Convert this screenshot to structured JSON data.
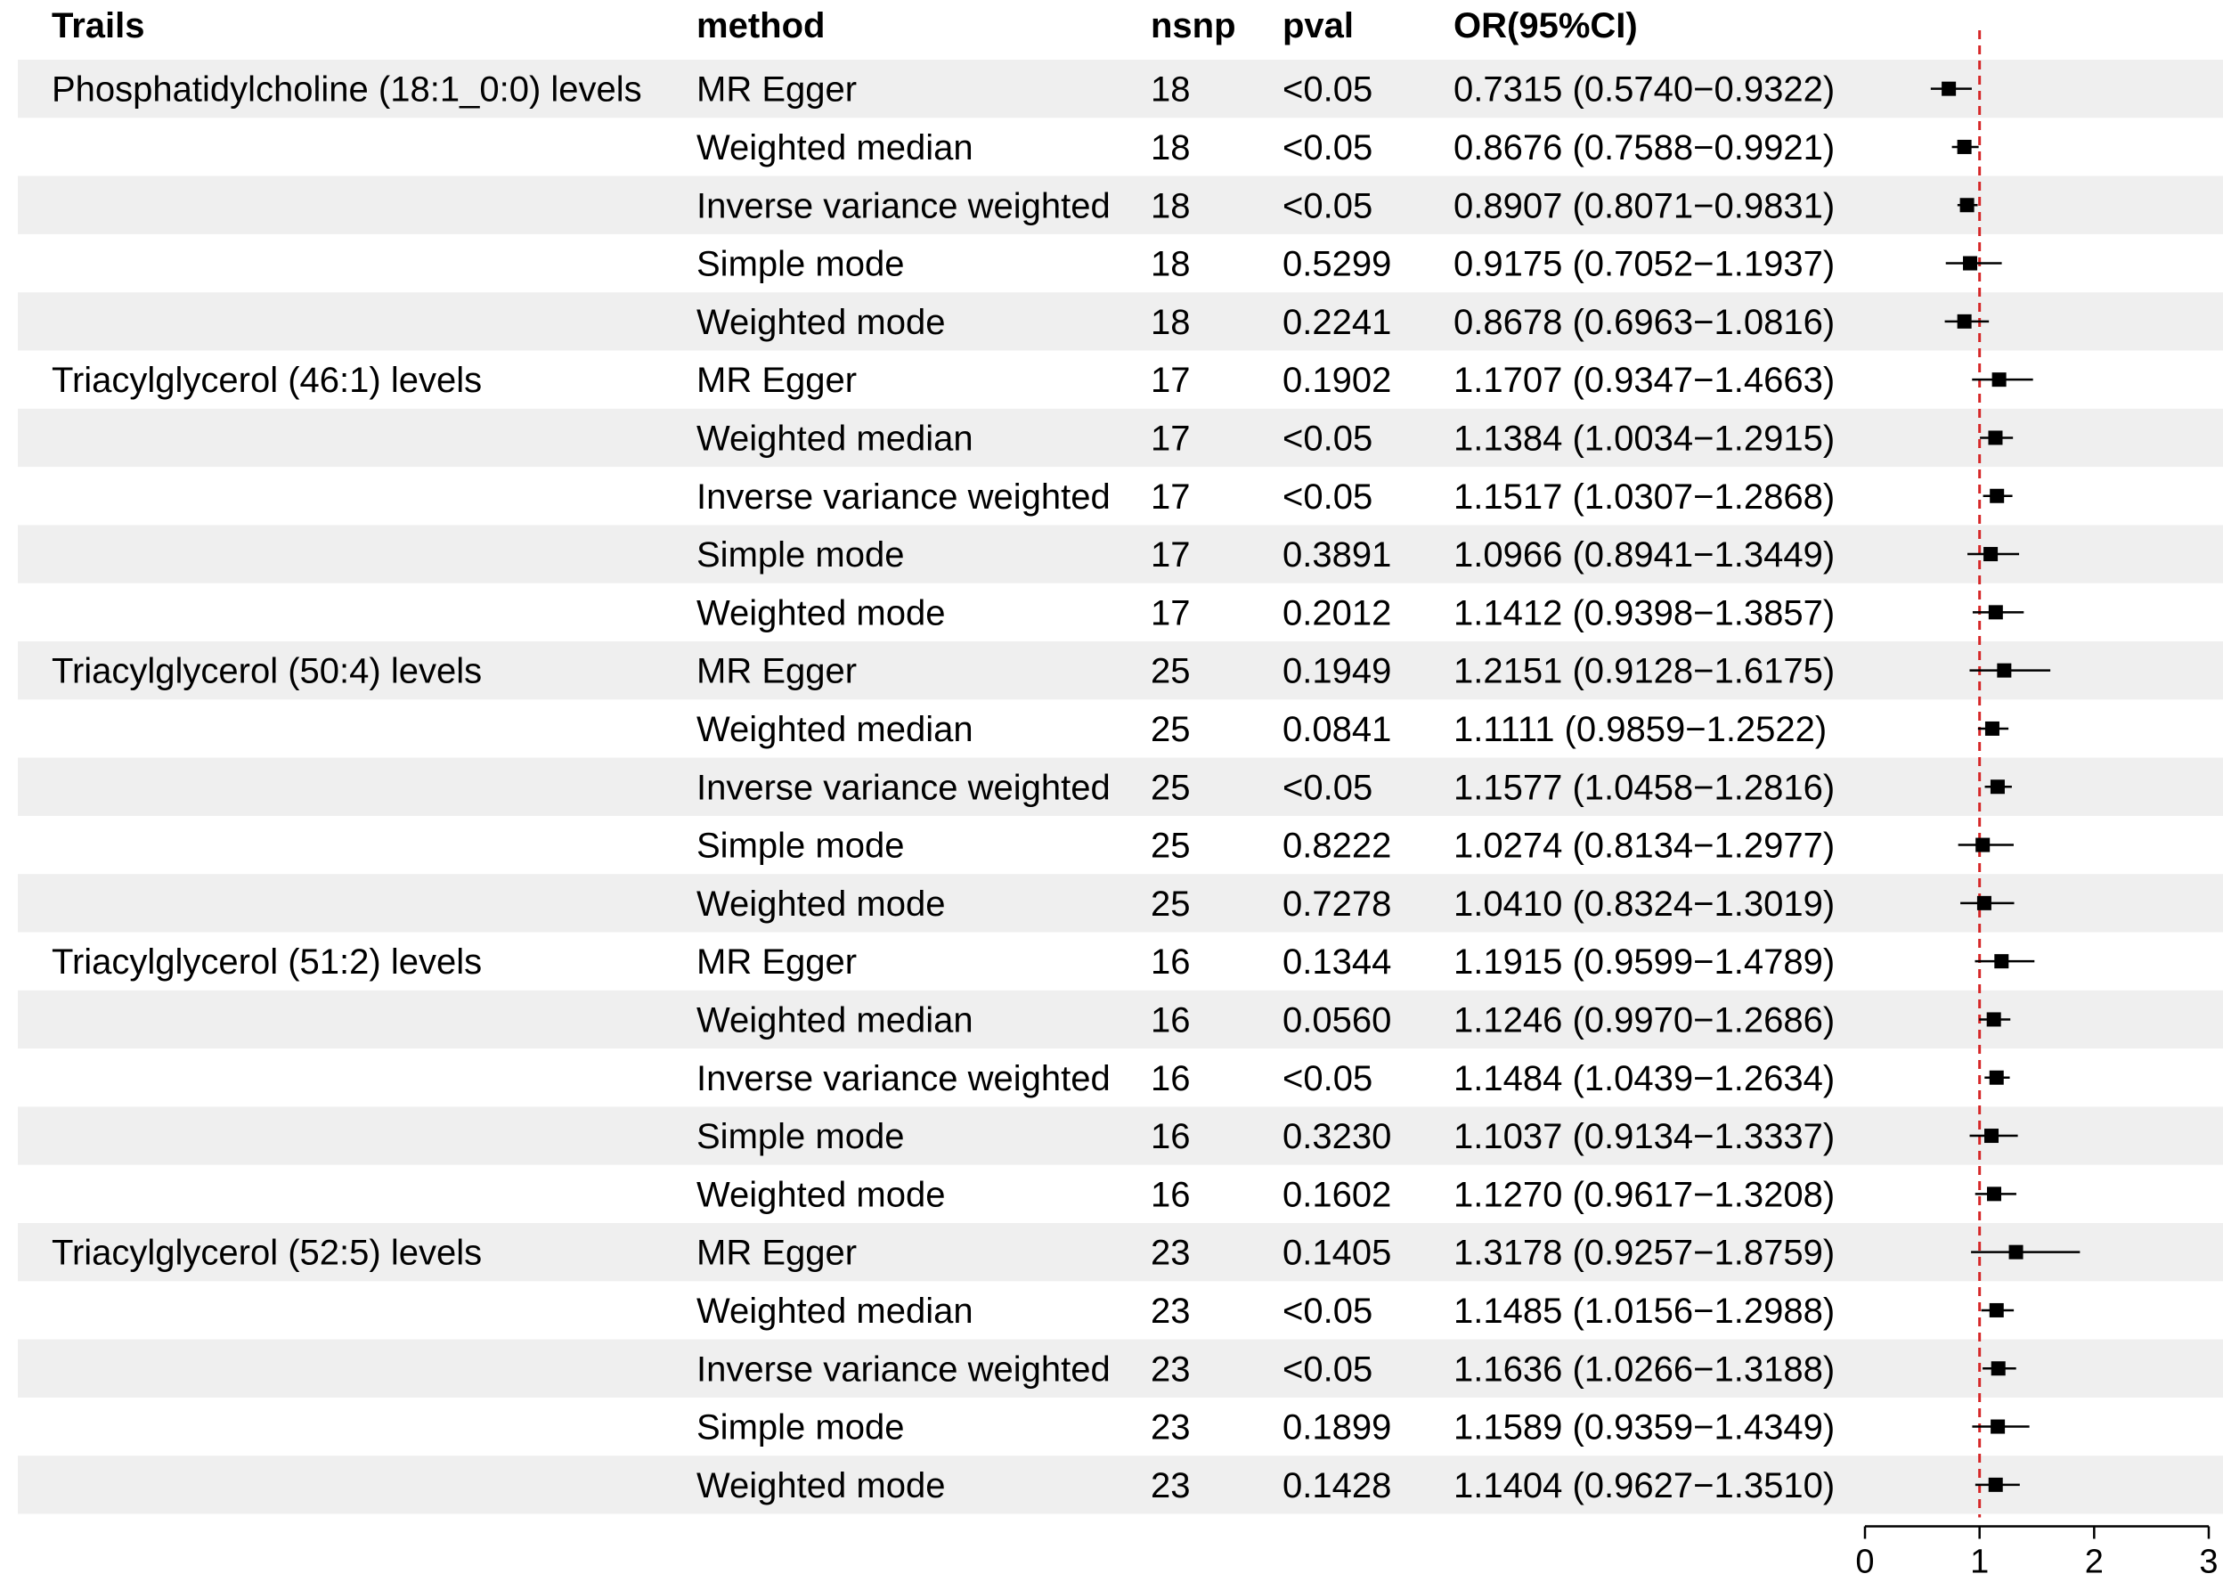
{
  "chart_data": {
    "type": "forest",
    "columns": [
      "Trails",
      "method",
      "nsnp",
      "pval",
      "OR(95%CI)"
    ],
    "reference_line": 1,
    "xlim": [
      0,
      3
    ],
    "x_ticks": [
      0,
      1,
      2,
      3
    ],
    "colors": {
      "band": "#efefef",
      "reference": "#d62728",
      "mark": "#000000"
    },
    "rows": [
      {
        "trait": "Phosphatidylcholine (18:1_0:0) levels",
        "method": "MR Egger",
        "nsnp": "18",
        "pval": "<0.05",
        "or_text": "0.7315 (0.5740−0.9322)",
        "or": 0.7315,
        "lo": 0.574,
        "hi": 0.9322
      },
      {
        "trait": "",
        "method": "Weighted median",
        "nsnp": "18",
        "pval": "<0.05",
        "or_text": "0.8676 (0.7588−0.9921)",
        "or": 0.8676,
        "lo": 0.7588,
        "hi": 0.9921
      },
      {
        "trait": "",
        "method": "Inverse variance weighted",
        "nsnp": "18",
        "pval": "<0.05",
        "or_text": "0.8907 (0.8071−0.9831)",
        "or": 0.8907,
        "lo": 0.8071,
        "hi": 0.9831
      },
      {
        "trait": "",
        "method": "Simple mode",
        "nsnp": "18",
        "pval": "0.5299",
        "or_text": "0.9175 (0.7052−1.1937)",
        "or": 0.9175,
        "lo": 0.7052,
        "hi": 1.1937
      },
      {
        "trait": "",
        "method": "Weighted mode",
        "nsnp": "18",
        "pval": "0.2241",
        "or_text": "0.8678 (0.6963−1.0816)",
        "or": 0.8678,
        "lo": 0.6963,
        "hi": 1.0816
      },
      {
        "trait": "Triacylglycerol (46:1) levels",
        "method": "MR Egger",
        "nsnp": "17",
        "pval": "0.1902",
        "or_text": "1.1707 (0.9347−1.4663)",
        "or": 1.1707,
        "lo": 0.9347,
        "hi": 1.4663
      },
      {
        "trait": "",
        "method": "Weighted median",
        "nsnp": "17",
        "pval": "<0.05",
        "or_text": "1.1384 (1.0034−1.2915)",
        "or": 1.1384,
        "lo": 1.0034,
        "hi": 1.2915
      },
      {
        "trait": "",
        "method": "Inverse variance weighted",
        "nsnp": "17",
        "pval": "<0.05",
        "or_text": "1.1517 (1.0307−1.2868)",
        "or": 1.1517,
        "lo": 1.0307,
        "hi": 1.2868
      },
      {
        "trait": "",
        "method": "Simple mode",
        "nsnp": "17",
        "pval": "0.3891",
        "or_text": "1.0966 (0.8941−1.3449)",
        "or": 1.0966,
        "lo": 0.8941,
        "hi": 1.3449
      },
      {
        "trait": "",
        "method": "Weighted mode",
        "nsnp": "17",
        "pval": "0.2012",
        "or_text": "1.1412 (0.9398−1.3857)",
        "or": 1.1412,
        "lo": 0.9398,
        "hi": 1.3857
      },
      {
        "trait": "Triacylglycerol (50:4) levels",
        "method": "MR Egger",
        "nsnp": "25",
        "pval": "0.1949",
        "or_text": "1.2151 (0.9128−1.6175)",
        "or": 1.2151,
        "lo": 0.9128,
        "hi": 1.6175
      },
      {
        "trait": "",
        "method": "Weighted median",
        "nsnp": "25",
        "pval": "0.0841",
        "or_text": "1.1111 (0.9859−1.2522)",
        "or": 1.1111,
        "lo": 0.9859,
        "hi": 1.2522
      },
      {
        "trait": "",
        "method": "Inverse variance weighted",
        "nsnp": "25",
        "pval": "<0.05",
        "or_text": "1.1577 (1.0458−1.2816)",
        "or": 1.1577,
        "lo": 1.0458,
        "hi": 1.2816
      },
      {
        "trait": "",
        "method": "Simple mode",
        "nsnp": "25",
        "pval": "0.8222",
        "or_text": "1.0274 (0.8134−1.2977)",
        "or": 1.0274,
        "lo": 0.8134,
        "hi": 1.2977
      },
      {
        "trait": "",
        "method": "Weighted mode",
        "nsnp": "25",
        "pval": "0.7278",
        "or_text": "1.0410 (0.8324−1.3019)",
        "or": 1.041,
        "lo": 0.8324,
        "hi": 1.3019
      },
      {
        "trait": "Triacylglycerol (51:2) levels",
        "method": "MR Egger",
        "nsnp": "16",
        "pval": "0.1344",
        "or_text": "1.1915 (0.9599−1.4789)",
        "or": 1.1915,
        "lo": 0.9599,
        "hi": 1.4789
      },
      {
        "trait": "",
        "method": "Weighted median",
        "nsnp": "16",
        "pval": "0.0560",
        "or_text": "1.1246 (0.9970−1.2686)",
        "or": 1.1246,
        "lo": 0.997,
        "hi": 1.2686
      },
      {
        "trait": "",
        "method": "Inverse variance weighted",
        "nsnp": "16",
        "pval": "<0.05",
        "or_text": "1.1484 (1.0439−1.2634)",
        "or": 1.1484,
        "lo": 1.0439,
        "hi": 1.2634
      },
      {
        "trait": "",
        "method": "Simple mode",
        "nsnp": "16",
        "pval": "0.3230",
        "or_text": "1.1037 (0.9134−1.3337)",
        "or": 1.1037,
        "lo": 0.9134,
        "hi": 1.3337
      },
      {
        "trait": "",
        "method": "Weighted mode",
        "nsnp": "16",
        "pval": "0.1602",
        "or_text": "1.1270 (0.9617−1.3208)",
        "or": 1.127,
        "lo": 0.9617,
        "hi": 1.3208
      },
      {
        "trait": "Triacylglycerol (52:5) levels",
        "method": "MR Egger",
        "nsnp": "23",
        "pval": "0.1405",
        "or_text": "1.3178 (0.9257−1.8759)",
        "or": 1.3178,
        "lo": 0.9257,
        "hi": 1.8759
      },
      {
        "trait": "",
        "method": "Weighted median",
        "nsnp": "23",
        "pval": "<0.05",
        "or_text": "1.1485 (1.0156−1.2988)",
        "or": 1.1485,
        "lo": 1.0156,
        "hi": 1.2988
      },
      {
        "trait": "",
        "method": "Inverse variance weighted",
        "nsnp": "23",
        "pval": "<0.05",
        "or_text": "1.1636 (1.0266−1.3188)",
        "or": 1.1636,
        "lo": 1.0266,
        "hi": 1.3188
      },
      {
        "trait": "",
        "method": "Simple mode",
        "nsnp": "23",
        "pval": "0.1899",
        "or_text": "1.1589 (0.9359−1.4349)",
        "or": 1.1589,
        "lo": 0.9359,
        "hi": 1.4349
      },
      {
        "trait": "",
        "method": "Weighted mode",
        "nsnp": "23",
        "pval": "0.1428",
        "or_text": "1.1404 (0.9627−1.3510)",
        "or": 1.1404,
        "lo": 0.9627,
        "hi": 1.351
      }
    ]
  }
}
